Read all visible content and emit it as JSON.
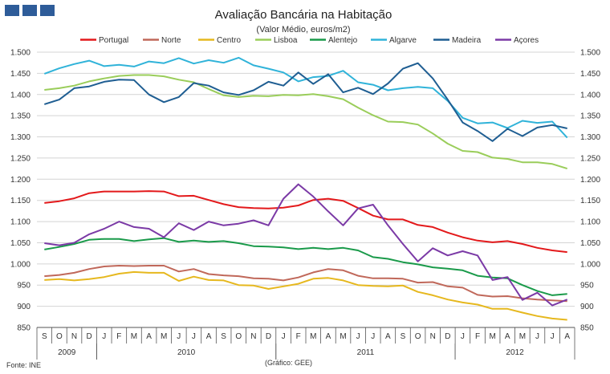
{
  "logo": {
    "color": "#2e5c99"
  },
  "chart_data": {
    "type": "line",
    "title": "Avaliação Bancária na Habitação",
    "subtitle": "(Valor Médio, euros/m2)",
    "source": "Fonte: INE",
    "credit": "(Gráfico: GEE)",
    "ylim": [
      850,
      1500
    ],
    "yticks": [
      "850",
      "900",
      "950",
      "1.000",
      "1.050",
      "1.100",
      "1.150",
      "1.200",
      "1.250",
      "1.300",
      "1.350",
      "1.400",
      "1.450",
      "1.500"
    ],
    "months": [
      "S",
      "O",
      "N",
      "D",
      "J",
      "F",
      "M",
      "A",
      "M",
      "J",
      "J",
      "A",
      "S",
      "O",
      "N",
      "D",
      "J",
      "F",
      "M",
      "A",
      "M",
      "J",
      "J",
      "A",
      "S",
      "O",
      "N",
      "D",
      "J",
      "F",
      "M",
      "A",
      "M",
      "J",
      "J",
      "A"
    ],
    "years": [
      {
        "label": "2009",
        "start": 0,
        "end": 4
      },
      {
        "label": "2010",
        "start": 4,
        "end": 16
      },
      {
        "label": "2011",
        "start": 16,
        "end": 28
      },
      {
        "label": "2012",
        "start": 28,
        "end": 36
      }
    ],
    "series": [
      {
        "name": "Portugal",
        "color": "#e3191b",
        "values": [
          1144,
          1148,
          1155,
          1167,
          1171,
          1171,
          1171,
          1172,
          1171,
          1160,
          1161,
          1151,
          1141,
          1134,
          1132,
          1131,
          1133,
          1138,
          1151,
          1154,
          1149,
          1132,
          1114,
          1105,
          1105,
          1092,
          1087,
          1074,
          1063,
          1055,
          1051,
          1054,
          1047,
          1038,
          1032,
          1028
        ]
      },
      {
        "name": "Norte",
        "color": "#c0685a",
        "values": [
          971,
          974,
          979,
          988,
          994,
          996,
          995,
          996,
          996,
          982,
          988,
          976,
          973,
          971,
          966,
          965,
          961,
          968,
          980,
          988,
          985,
          972,
          966,
          966,
          965,
          956,
          957,
          947,
          944,
          927,
          923,
          924,
          919,
          916,
          914,
          912
        ]
      },
      {
        "name": "Centro",
        "color": "#e6b81e",
        "values": [
          962,
          964,
          961,
          964,
          969,
          977,
          981,
          979,
          979,
          960,
          970,
          962,
          961,
          950,
          949,
          941,
          947,
          953,
          965,
          967,
          961,
          950,
          948,
          947,
          949,
          934,
          926,
          916,
          909,
          904,
          894,
          894,
          885,
          877,
          871,
          868
        ]
      },
      {
        "name": "Lisboa",
        "color": "#9acd5a",
        "values": [
          1411,
          1415,
          1421,
          1431,
          1438,
          1444,
          1446,
          1446,
          1443,
          1435,
          1429,
          1413,
          1398,
          1394,
          1397,
          1396,
          1399,
          1398,
          1401,
          1396,
          1389,
          1369,
          1351,
          1336,
          1335,
          1329,
          1308,
          1284,
          1267,
          1264,
          1251,
          1248,
          1240,
          1240,
          1236,
          1225
        ]
      },
      {
        "name": "Alentejo",
        "color": "#1a9a4a",
        "values": [
          1034,
          1040,
          1047,
          1057,
          1059,
          1059,
          1054,
          1058,
          1061,
          1052,
          1055,
          1052,
          1054,
          1049,
          1042,
          1041,
          1039,
          1035,
          1038,
          1035,
          1038,
          1032,
          1016,
          1012,
          1004,
          999,
          992,
          989,
          985,
          972,
          968,
          966,
          950,
          936,
          926,
          929
        ]
      },
      {
        "name": "Algarve",
        "color": "#30b3d9",
        "values": [
          1449,
          1462,
          1472,
          1480,
          1467,
          1470,
          1466,
          1478,
          1474,
          1486,
          1473,
          1481,
          1475,
          1487,
          1469,
          1461,
          1452,
          1431,
          1441,
          1444,
          1456,
          1429,
          1423,
          1410,
          1415,
          1418,
          1415,
          1385,
          1345,
          1332,
          1334,
          1321,
          1338,
          1333,
          1336,
          1298
        ]
      },
      {
        "name": "Madeira",
        "color": "#1f5e92",
        "values": [
          1377,
          1388,
          1415,
          1419,
          1430,
          1435,
          1434,
          1400,
          1382,
          1394,
          1427,
          1421,
          1405,
          1399,
          1410,
          1430,
          1421,
          1452,
          1425,
          1448,
          1405,
          1416,
          1401,
          1426,
          1461,
          1474,
          1438,
          1388,
          1334,
          1314,
          1290,
          1319,
          1302,
          1322,
          1328,
          1320
        ]
      },
      {
        "name": "Açores",
        "color": "#7b3aa6",
        "values": [
          1049,
          1044,
          1050,
          1070,
          1083,
          1100,
          1087,
          1083,
          1063,
          1096,
          1080,
          1100,
          1091,
          1095,
          1103,
          1091,
          1154,
          1188,
          1159,
          1124,
          1091,
          1131,
          1140,
          1091,
          1047,
          1006,
          1037,
          1020,
          1030,
          1020,
          962,
          969,
          915,
          932,
          902,
          916
        ]
      }
    ]
  }
}
